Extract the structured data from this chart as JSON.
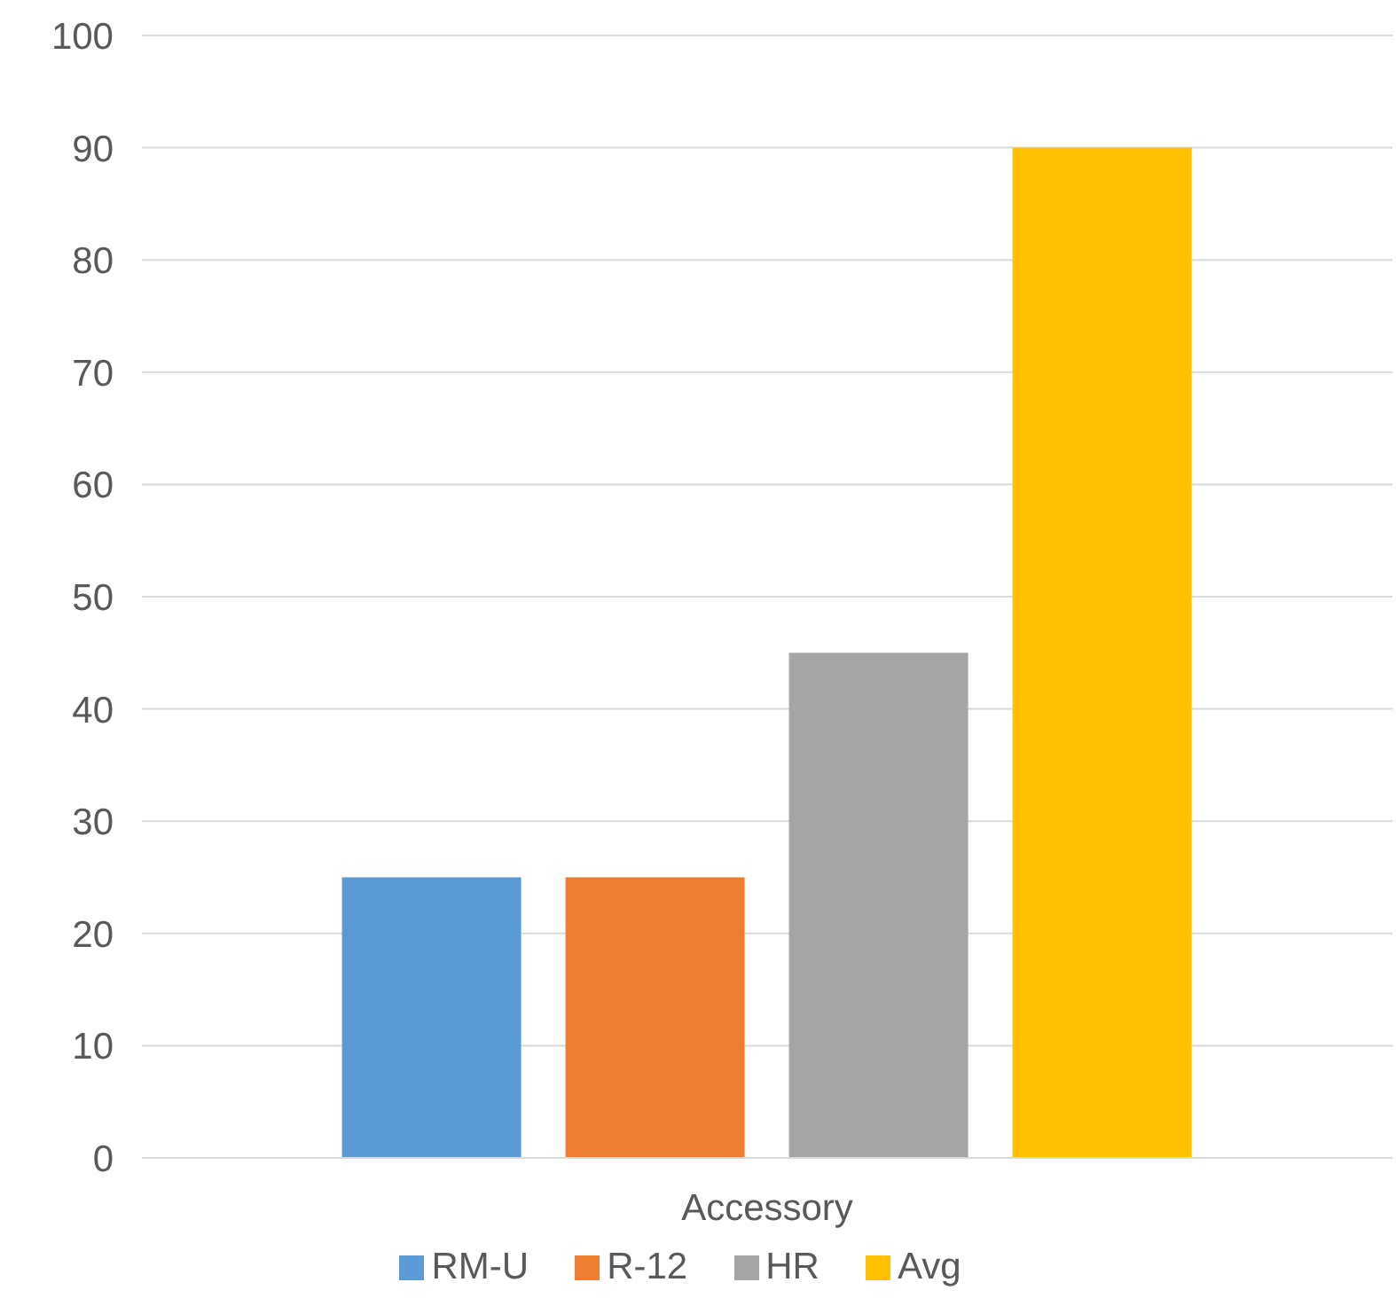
{
  "chart_data": {
    "type": "bar",
    "categories": [
      "Accessory"
    ],
    "series": [
      {
        "name": "RM-U",
        "color": "#5b9bd5",
        "values": [
          25
        ]
      },
      {
        "name": "R-12",
        "color": "#ed7d31",
        "values": [
          25
        ]
      },
      {
        "name": "HR",
        "color": "#a5a5a5",
        "values": [
          45
        ]
      },
      {
        "name": "Avg",
        "color": "#ffc000",
        "values": [
          90
        ]
      }
    ],
    "ylim": [
      0,
      100
    ],
    "yticks": [
      0,
      10,
      20,
      30,
      40,
      50,
      60,
      70,
      80,
      90,
      100
    ],
    "grid": "y",
    "legend": "bottom"
  }
}
